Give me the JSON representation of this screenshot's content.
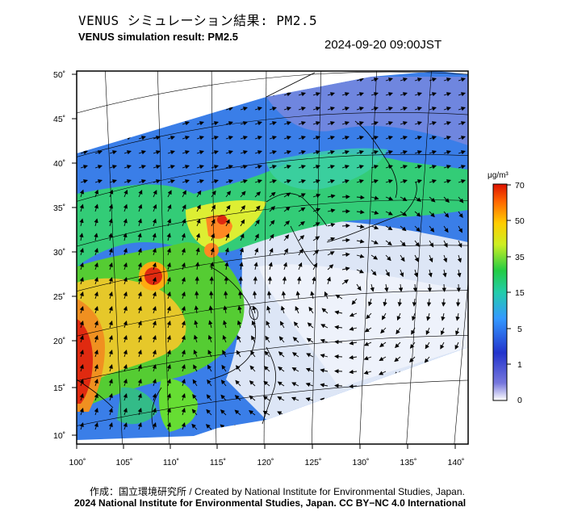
{
  "header": {
    "title_jp": "VENUS シミュレーション結果: PM2.5",
    "title_en": "VENUS simulation result: PM2.5",
    "timestamp": "2024-09-20 09:00JST"
  },
  "map": {
    "lat_labels": [
      "50˚",
      "45˚",
      "40˚",
      "35˚",
      "30˚",
      "25˚",
      "20˚",
      "15˚",
      "10˚"
    ],
    "lon_labels": [
      "100˚",
      "105˚",
      "110˚",
      "115˚",
      "120˚",
      "125˚",
      "130˚",
      "135˚",
      "140˚"
    ],
    "layers": [
      "PM2.5 concentration",
      "wind vectors",
      "coastlines",
      "graticule"
    ]
  },
  "colorbar": {
    "unit": "μg/m³",
    "ticks": [
      "70",
      "50",
      "35",
      "15",
      "5",
      "1",
      "0"
    ],
    "colors": [
      "#ffffff",
      "#2233cc",
      "#3399ff",
      "#22cc88",
      "#33dd22",
      "#ddee22",
      "#ff9900",
      "#ee2200"
    ]
  },
  "footer": {
    "credit_jp": "作成：国立環境研究所 / Created by National Institute for Environmental Studies, Japan.",
    "copyright": "2024 National Institute for Environmental Studies, Japan. CC BY−NC 4.0 International"
  }
}
